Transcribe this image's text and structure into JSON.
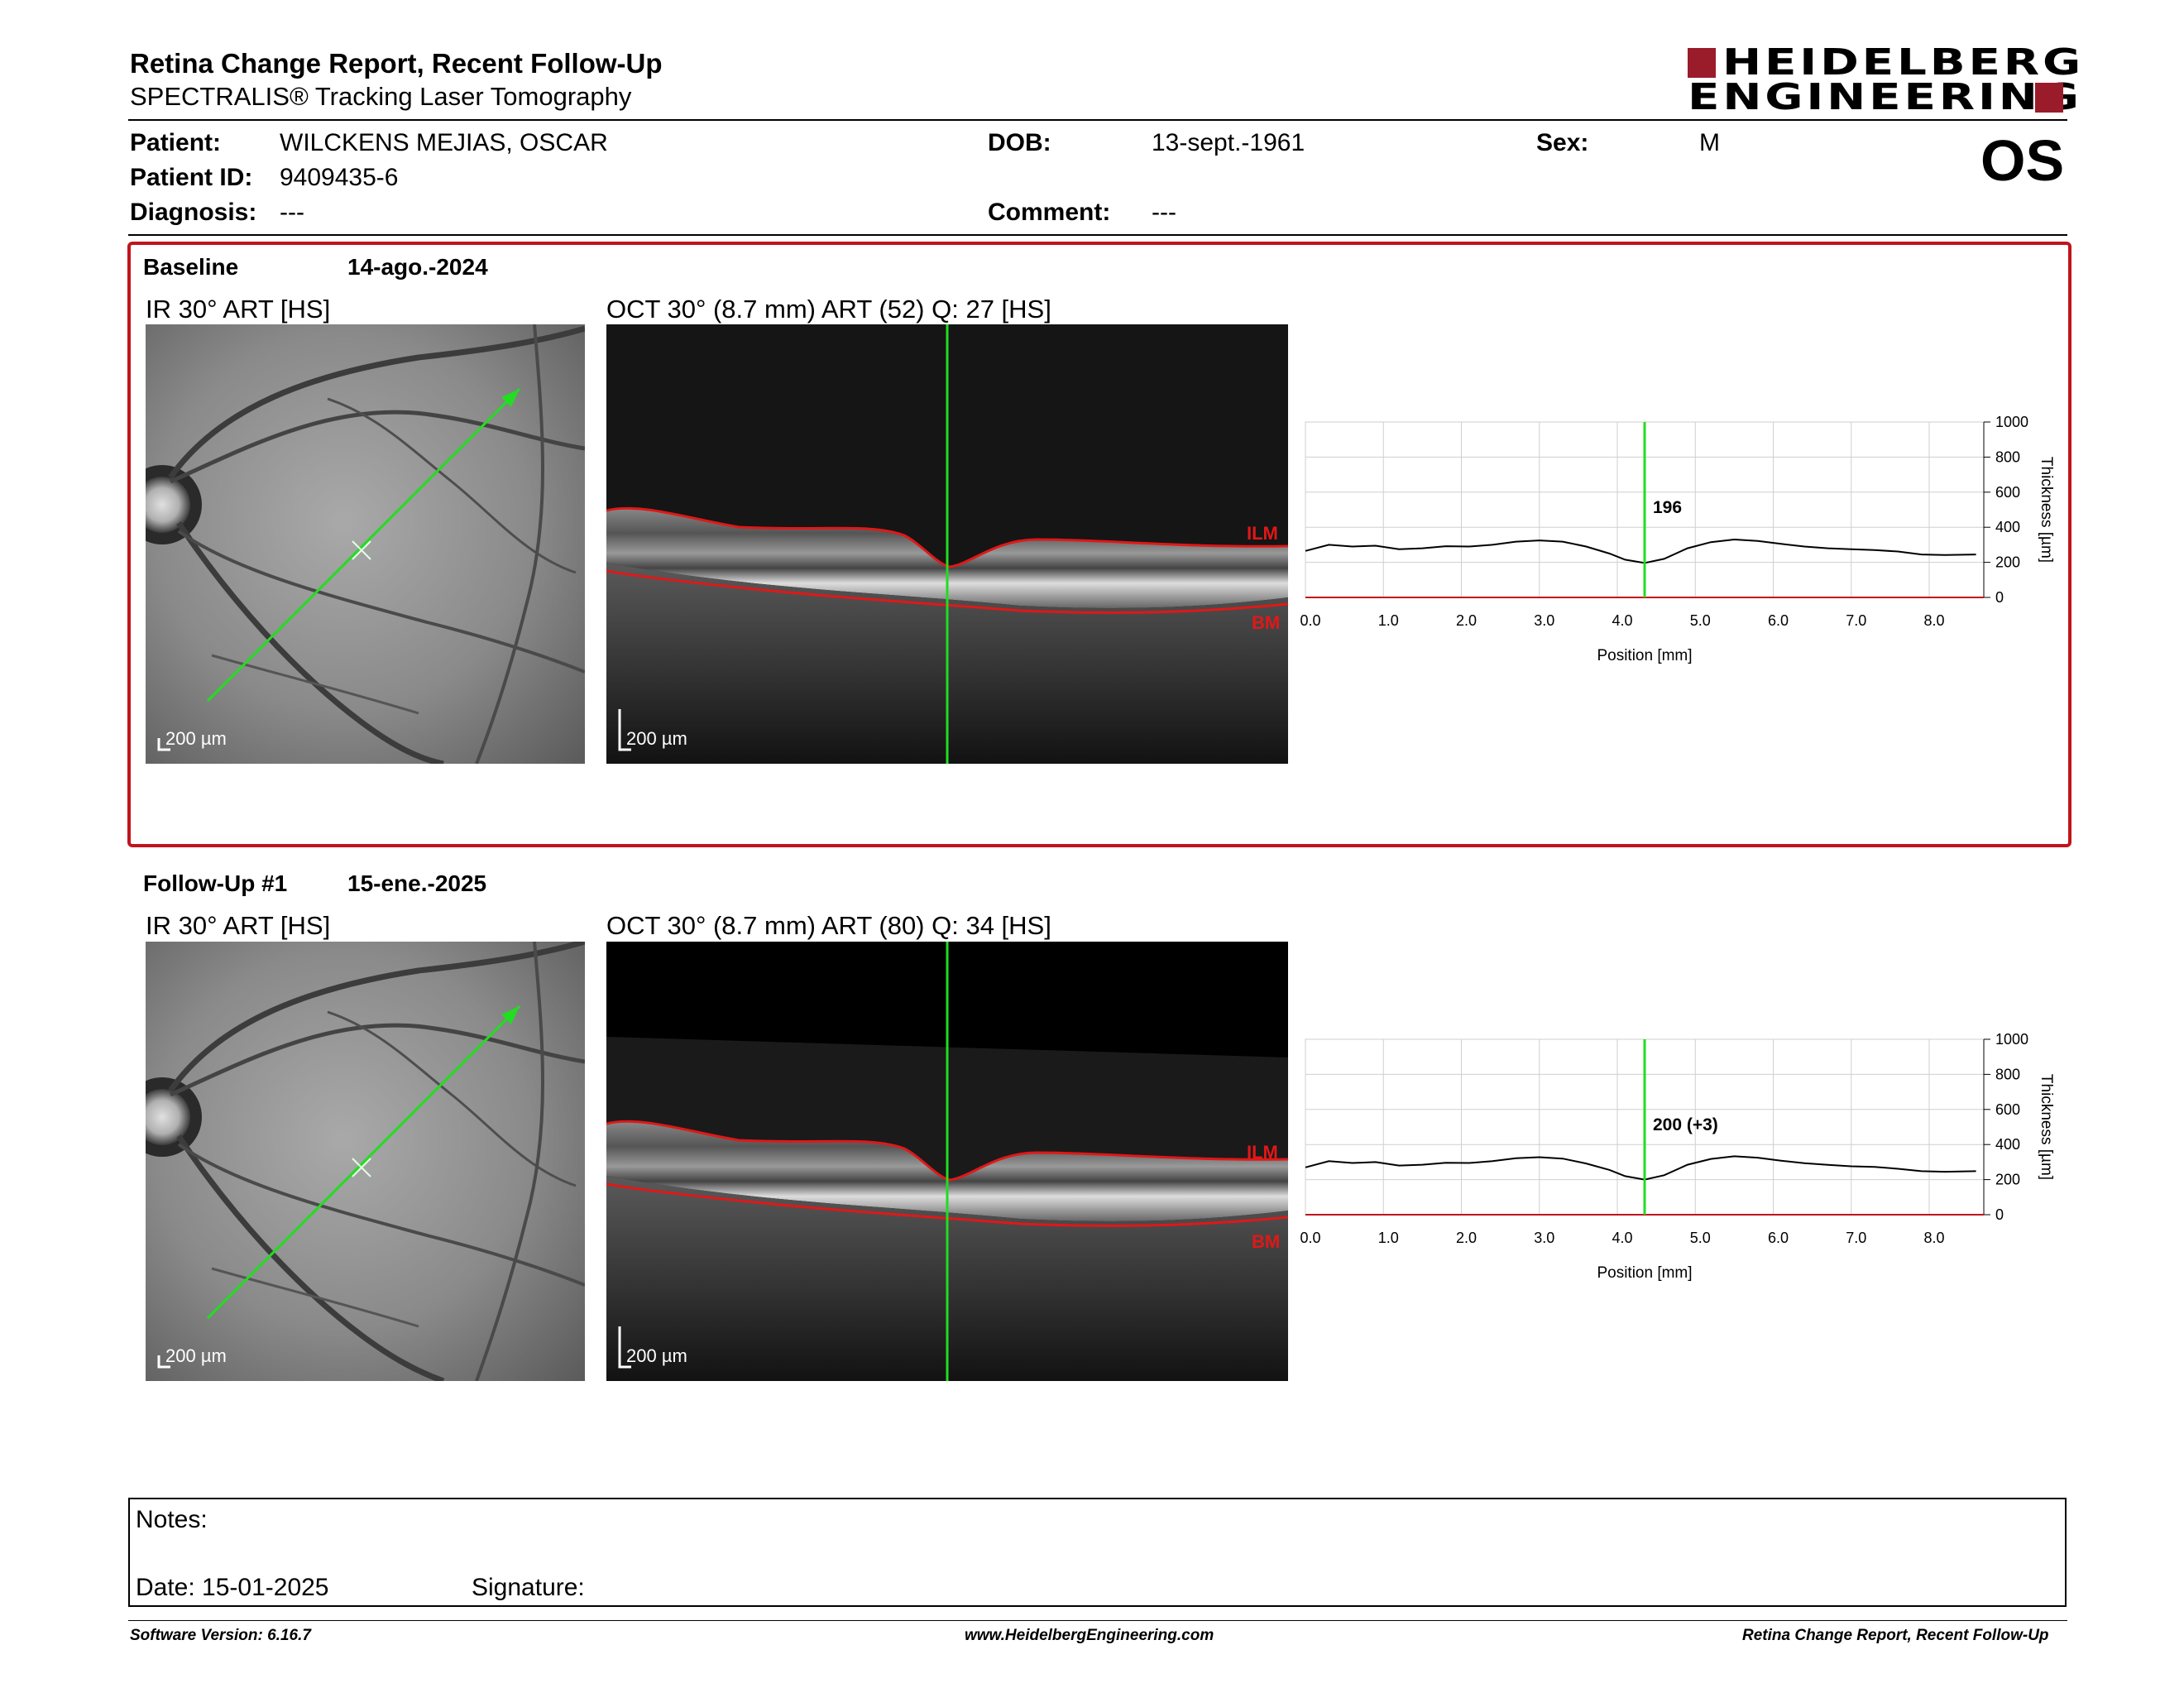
{
  "report": {
    "title": "Retina Change Report, Recent Follow-Up",
    "subtitle": "SPECTRALIS® Tracking Laser Tomography",
    "logo_line1": "HEIDELBERG",
    "logo_line2": "ENGINEERING",
    "brand_color": "#9a1b2a"
  },
  "patient": {
    "patient_label": "Patient:",
    "patient_name": "WILCKENS MEJIAS, OSCAR",
    "id_label": "Patient ID:",
    "id_value": "9409435-6",
    "diagnosis_label": "Diagnosis:",
    "diagnosis_value": "---",
    "dob_label": "DOB:",
    "dob_value": "13-sept.-1961",
    "comment_label": "Comment:",
    "comment_value": "---",
    "sex_label": "Sex:",
    "sex_value": "M",
    "eye": "OS"
  },
  "baseline": {
    "label": "Baseline",
    "date": "14-ago.-2024",
    "ir_label": "IR 30° ART [HS]",
    "oct_label": "OCT 30° (8.7 mm) ART (52) Q: 27 [HS]",
    "scale_ir": "200 µm",
    "scale_oct": "200 µm",
    "ilm": "ILM",
    "bm": "BM",
    "highlight_color": "#c0141c"
  },
  "followup": {
    "label": "Follow-Up #1",
    "date": "15-ene.-2025",
    "ir_label": "IR 30° ART [HS]",
    "oct_label": "OCT 30° (8.7 mm) ART (80) Q: 34 [HS]",
    "scale_ir": "200 µm",
    "scale_oct": "200 µm",
    "ilm": "ILM",
    "bm": "BM"
  },
  "chart_data": [
    {
      "type": "line",
      "xlabel": "Position [mm]",
      "ylabel": "Thickness [µm]",
      "xlim": [
        0,
        8.7
      ],
      "ylim": [
        0,
        1000
      ],
      "xticks": [
        "0.0",
        "1.0",
        "2.0",
        "3.0",
        "4.0",
        "5.0",
        "6.0",
        "7.0",
        "8.0"
      ],
      "yticks": [
        "0",
        "200",
        "400",
        "600",
        "800",
        "1000"
      ],
      "grid": true,
      "cursor_x": 4.35,
      "cursor_label": "196",
      "x": [
        0.0,
        0.3,
        0.6,
        0.9,
        1.2,
        1.5,
        1.8,
        2.1,
        2.4,
        2.7,
        3.0,
        3.3,
        3.6,
        3.9,
        4.1,
        4.35,
        4.6,
        4.9,
        5.2,
        5.5,
        5.8,
        6.1,
        6.4,
        6.7,
        7.0,
        7.3,
        7.6,
        7.9,
        8.2,
        8.6
      ],
      "y": [
        265,
        300,
        290,
        295,
        275,
        280,
        292,
        290,
        300,
        318,
        325,
        318,
        290,
        250,
        215,
        196,
        220,
        280,
        315,
        330,
        322,
        305,
        290,
        280,
        275,
        270,
        262,
        245,
        242,
        245
      ]
    },
    {
      "type": "line",
      "xlabel": "Position [mm]",
      "ylabel": "Thickness [µm]",
      "xlim": [
        0,
        8.7
      ],
      "ylim": [
        0,
        1000
      ],
      "xticks": [
        "0.0",
        "1.0",
        "2.0",
        "3.0",
        "4.0",
        "5.0",
        "6.0",
        "7.0",
        "8.0"
      ],
      "yticks": [
        "0",
        "200",
        "400",
        "600",
        "800",
        "1000"
      ],
      "grid": true,
      "cursor_x": 4.35,
      "cursor_label": "200 (+3)",
      "x": [
        0.0,
        0.3,
        0.6,
        0.9,
        1.2,
        1.5,
        1.8,
        2.1,
        2.4,
        2.7,
        3.0,
        3.3,
        3.6,
        3.9,
        4.1,
        4.35,
        4.6,
        4.9,
        5.2,
        5.5,
        5.8,
        6.1,
        6.4,
        6.7,
        7.0,
        7.3,
        7.6,
        7.9,
        8.2,
        8.6
      ],
      "y": [
        270,
        305,
        295,
        300,
        280,
        285,
        296,
        295,
        305,
        322,
        328,
        320,
        292,
        255,
        220,
        200,
        225,
        285,
        318,
        333,
        325,
        308,
        294,
        284,
        276,
        272,
        262,
        248,
        245,
        248
      ]
    }
  ],
  "notes": {
    "notes_label": "Notes:",
    "date_label": "Date: 15-01-2025",
    "signature_label": "Signature:"
  },
  "footer": {
    "version": "Software Version: 6.16.7",
    "website": "www.HeidelbergEngineering.com",
    "report_name": "Retina Change Report, Recent Follow-Up"
  }
}
